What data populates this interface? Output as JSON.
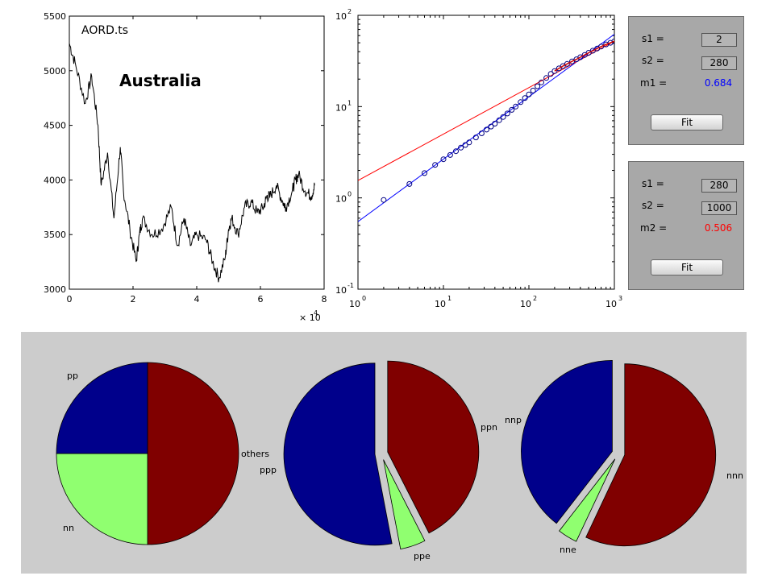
{
  "chart_data": [
    {
      "type": "line",
      "title": "AORD.ts",
      "annotation": "Australia",
      "xlim": [
        0,
        80000
      ],
      "ylim": [
        3000,
        5500
      ],
      "x_ticks": [
        "0",
        "2",
        "4",
        "6",
        "8"
      ],
      "x_multiplier": "× 10",
      "x_multiplier_exp": "4",
      "y_ticks": [
        "3000",
        "3500",
        "4000",
        "4500",
        "5000",
        "5500"
      ],
      "grid": false,
      "series": [
        {
          "color": "#000000",
          "x": [
            0,
            2000,
            5000,
            7000,
            9000,
            10000,
            12000,
            14000,
            16000,
            17000,
            19000,
            21000,
            22000,
            23000,
            26000,
            29000,
            32000,
            34000,
            36000,
            38000,
            40000,
            43000,
            45000,
            47000,
            49000,
            50000,
            51000,
            53000,
            55000,
            57000,
            59000,
            61000,
            62000,
            63000,
            65000,
            67000,
            68000,
            70000,
            71000,
            72000,
            74000,
            76000,
            77000
          ],
          "y": [
            5250,
            5050,
            4700,
            4950,
            4500,
            3950,
            4250,
            3650,
            4300,
            3900,
            3550,
            3250,
            3500,
            3650,
            3500,
            3550,
            3750,
            3400,
            3650,
            3400,
            3500,
            3450,
            3250,
            3100,
            3300,
            3550,
            3650,
            3500,
            3750,
            3800,
            3700,
            3750,
            3850,
            3850,
            3950,
            3800,
            3750,
            3900,
            4000,
            4050,
            3900,
            3850,
            3950
          ]
        }
      ]
    },
    {
      "type": "scatter",
      "x_scale": "log",
      "y_scale": "log",
      "xlim": [
        1,
        1000
      ],
      "ylim": [
        0.1,
        100
      ],
      "x_ticks": [
        {
          "base": "10",
          "exp": "0"
        },
        {
          "base": "10",
          "exp": "1"
        },
        {
          "base": "10",
          "exp": "2"
        },
        {
          "base": "10",
          "exp": "3"
        }
      ],
      "y_ticks": [
        {
          "base": "10",
          "exp": "-1"
        },
        {
          "base": "10",
          "exp": "0"
        },
        {
          "base": "10",
          "exp": "1"
        },
        {
          "base": "10",
          "exp": "2"
        }
      ],
      "points": {
        "color": "#000080",
        "x": [
          2,
          4,
          6,
          8,
          10,
          12,
          14,
          16,
          18,
          20,
          24,
          28,
          32,
          36,
          40,
          45,
          50,
          56,
          63,
          70,
          80,
          90,
          100,
          112,
          126,
          140,
          160,
          180,
          200,
          225,
          250,
          280,
          320,
          360,
          400,
          450,
          500,
          560,
          630,
          700,
          800,
          900,
          1000
        ],
        "y": [
          0.95,
          1.42,
          1.87,
          2.3,
          2.65,
          2.95,
          3.25,
          3.55,
          3.8,
          4.05,
          4.6,
          5.1,
          5.6,
          6.05,
          6.5,
          7.1,
          7.7,
          8.4,
          9.2,
          10.0,
          11.2,
          12.4,
          13.6,
          15.0,
          16.7,
          18.4,
          20.6,
          22.8,
          24.5,
          26.2,
          27.8,
          29.4,
          31.3,
          33.0,
          34.8,
          36.8,
          38.9,
          41.0,
          43.3,
          45.5,
          48.0,
          50.0,
          52.0
        ]
      },
      "fit_lines": [
        {
          "color": "#0000ff",
          "x": [
            1,
            1000
          ],
          "y": [
            0.55,
            62
          ]
        },
        {
          "color": "#ff0000",
          "x": [
            1,
            1000
          ],
          "y": [
            1.55,
            52
          ]
        }
      ]
    },
    {
      "type": "pie",
      "slices": [
        {
          "label": "others",
          "value": 50,
          "color": "#800000",
          "explode": false
        },
        {
          "label": "nn",
          "value": 25,
          "color": "#90ff70",
          "explode": false
        },
        {
          "label": "pp",
          "value": 25,
          "color": "#00008b",
          "explode": false
        }
      ]
    },
    {
      "type": "pie",
      "slices": [
        {
          "label": "ppn",
          "value": 42.5,
          "color": "#800000",
          "explode": true
        },
        {
          "label": "ppe",
          "value": 4.5,
          "color": "#90ff70",
          "explode": true
        },
        {
          "label": "ppp",
          "value": 53,
          "color": "#00008b",
          "explode": true
        }
      ]
    },
    {
      "type": "pie",
      "slices": [
        {
          "label": "nnn",
          "value": 57,
          "color": "#800000",
          "explode": true
        },
        {
          "label": "nne",
          "value": 3.5,
          "color": "#90ff70",
          "explode": true
        },
        {
          "label": "nnp",
          "value": 39.5,
          "color": "#00008b",
          "explode": true
        }
      ]
    }
  ],
  "fit_panels": [
    {
      "s1_label": "s1 =",
      "s1_value": "2",
      "s2_label": "s2 =",
      "s2_value": "280",
      "m_label": "m1 =",
      "m_value": "0.684",
      "m_color": "#0000ff",
      "button_label": "Fit"
    },
    {
      "s1_label": "s1 =",
      "s1_value": "280",
      "s2_label": "s2 =",
      "s2_value": "1000",
      "m_label": "m2 =",
      "m_value": "0.506",
      "m_color": "#ff0000",
      "button_label": "Fit"
    }
  ]
}
